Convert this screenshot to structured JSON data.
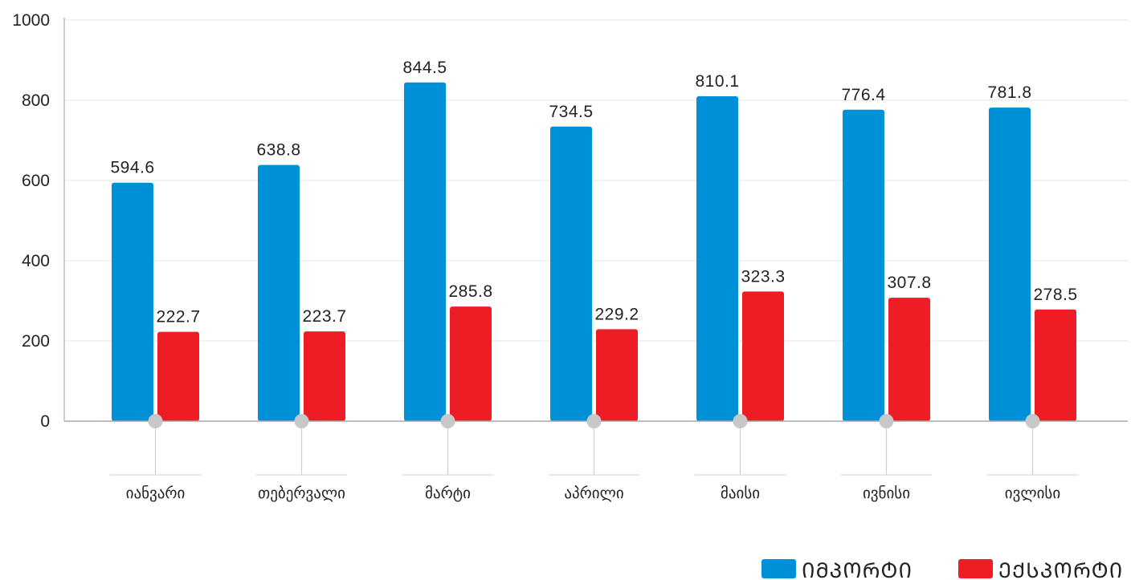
{
  "chart_data": {
    "type": "bar",
    "categories": [
      "იანვარი",
      "თებერვალი",
      "მარტი",
      "აპრილი",
      "მაისი",
      "ივნისი",
      "ივლისი"
    ],
    "series": [
      {
        "name": "ᲘᲛᲞᲝᲠᲢᲘ",
        "color": "#0090d8",
        "values": [
          594.6,
          638.8,
          844.5,
          734.5,
          810.1,
          776.4,
          781.8
        ]
      },
      {
        "name": "ᲔᲥᲡᲞᲝᲠᲢᲘ",
        "color": "#ee1c25",
        "values": [
          222.7,
          223.7,
          285.8,
          229.2,
          323.3,
          307.8,
          278.5
        ]
      }
    ],
    "ylim": [
      0,
      1000
    ],
    "yticks": [
      0,
      200,
      400,
      600,
      800,
      1000
    ],
    "grid": true,
    "legend": "bottom-right"
  }
}
